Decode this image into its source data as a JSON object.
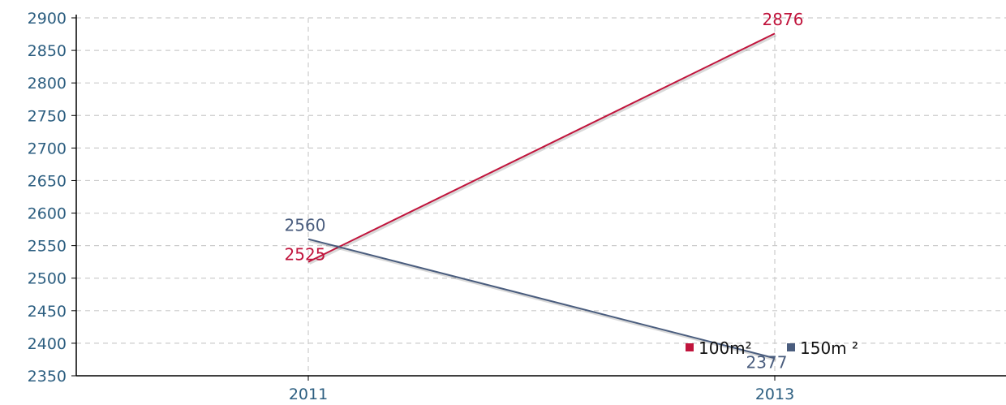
{
  "chart_data": {
    "type": "line",
    "title": "",
    "xlabel": "",
    "ylabel": "",
    "categories": [
      "2011",
      "2013"
    ],
    "ylim": [
      2350,
      2900
    ],
    "yticks": [
      2350,
      2400,
      2450,
      2500,
      2550,
      2600,
      2650,
      2700,
      2750,
      2800,
      2850,
      2900
    ],
    "grid": true,
    "legend_position": "bottom-right, inside plot",
    "series": [
      {
        "name": "100m²",
        "color": "#c0143c",
        "values": [
          2525,
          2876
        ],
        "labels": [
          "2525",
          "2876"
        ]
      },
      {
        "name": "150m ²",
        "color": "#4a5d7e",
        "values": [
          2560,
          2377
        ],
        "labels": [
          "2560",
          "2377"
        ]
      }
    ],
    "colors": {
      "axis": "#000000",
      "tick_text": "#2c5e80",
      "grid": "#cccccc"
    }
  }
}
